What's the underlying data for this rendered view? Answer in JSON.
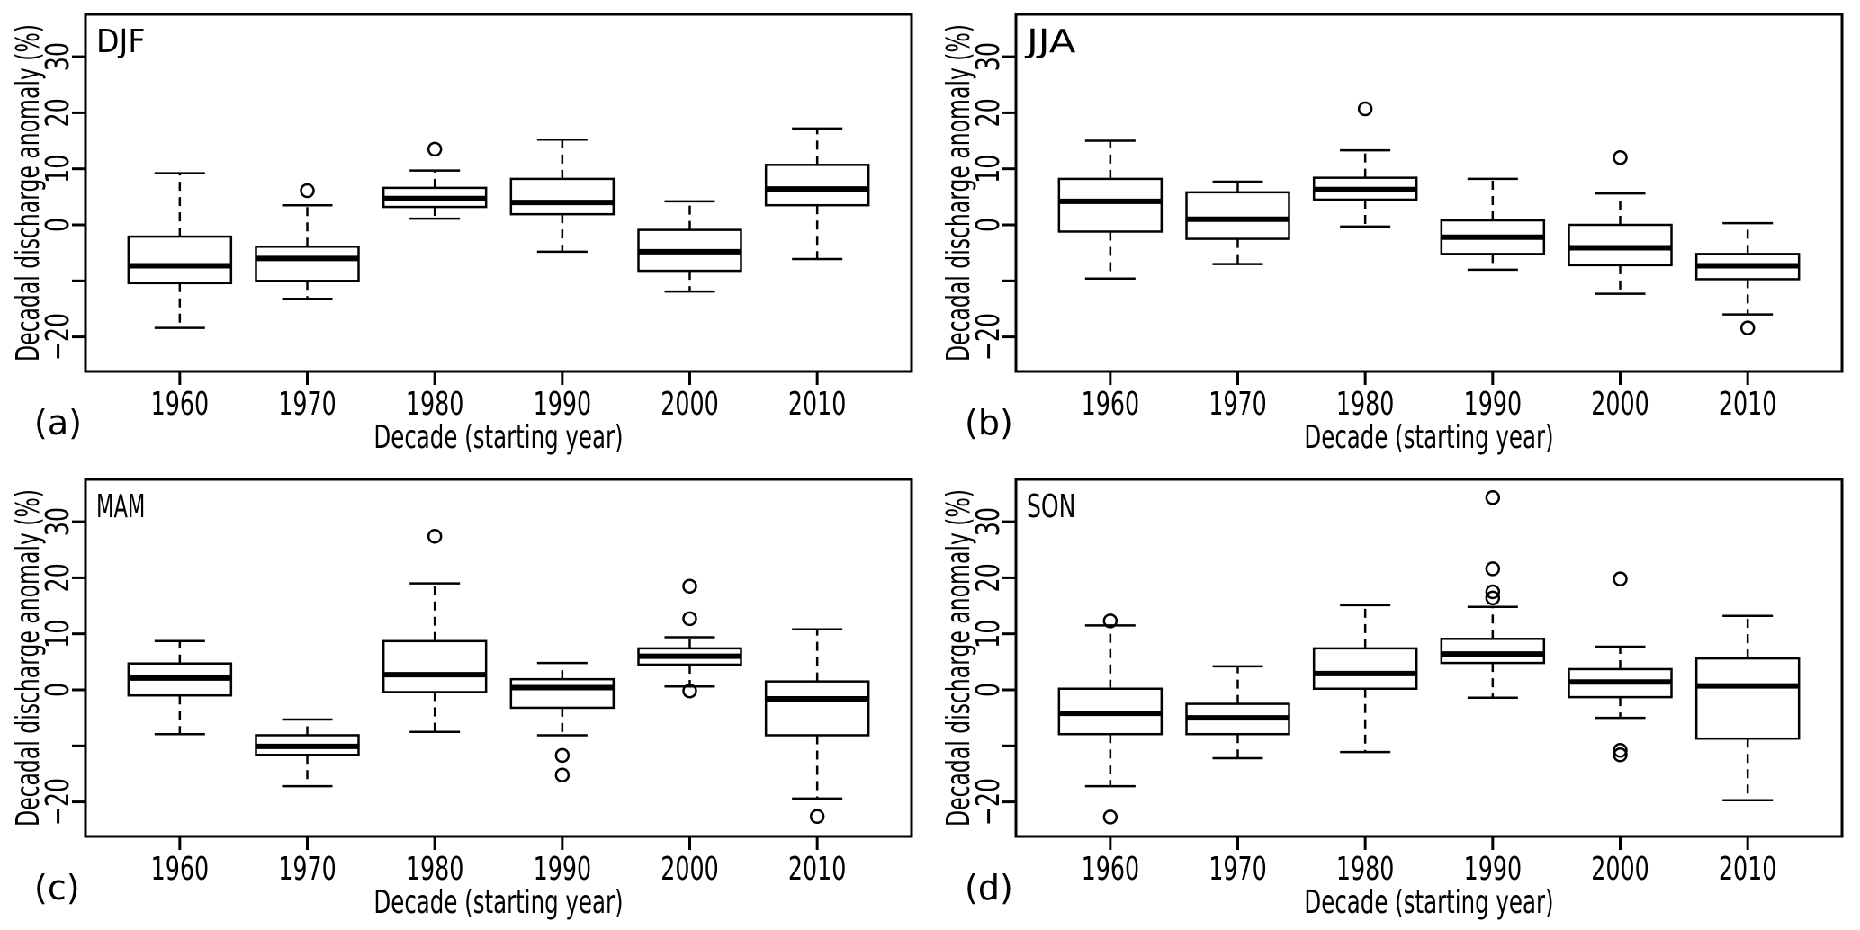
{
  "figure": {
    "background": "#ffffff",
    "ink_color": "#000000",
    "xlabel": "Decade (starting year)",
    "ylabel": "Decadal discharge anomaly (%)",
    "x_categories": [
      "1960",
      "1970",
      "1980",
      "1990",
      "2000",
      "2010"
    ],
    "y_ticks": [
      {
        "value": 30,
        "label": "30"
      },
      {
        "value": 20,
        "label": "20"
      },
      {
        "value": 10,
        "label": "10"
      },
      {
        "value": 0,
        "label": "0"
      },
      {
        "value": -10,
        "label": ""
      },
      {
        "value": -20,
        "label": "−20"
      }
    ],
    "ylim": [
      -26,
      38
    ],
    "grid": false,
    "legend": "none"
  },
  "chart_data": [
    {
      "type": "boxplot",
      "panel_label": "(a)",
      "title": "DJF",
      "xlabel": "Decade (starting year)",
      "ylabel": "Decadal discharge anomaly (%)",
      "categories": [
        "1960",
        "1970",
        "1980",
        "1990",
        "2000",
        "2010"
      ],
      "boxes": [
        {
          "category": "1960",
          "whisker_low": -18.4,
          "q1": -10.4,
          "median": -7.3,
          "q3": -2.1,
          "whisker_high": 9.2,
          "outliers": []
        },
        {
          "category": "1970",
          "whisker_low": -13.2,
          "q1": -10.0,
          "median": -6.0,
          "q3": -3.9,
          "whisker_high": 3.5,
          "outliers": [
            6.1
          ]
        },
        {
          "category": "1980",
          "whisker_low": 1.1,
          "q1": 3.2,
          "median": 4.7,
          "q3": 6.6,
          "whisker_high": 9.7,
          "outliers": [
            13.5
          ]
        },
        {
          "category": "1990",
          "whisker_low": -4.8,
          "q1": 1.9,
          "median": 4.0,
          "q3": 8.2,
          "whisker_high": 15.2,
          "outliers": []
        },
        {
          "category": "2000",
          "whisker_low": -11.9,
          "q1": -8.2,
          "median": -4.8,
          "q3": -0.9,
          "whisker_high": 4.2,
          "outliers": []
        },
        {
          "category": "2010",
          "whisker_low": -6.1,
          "q1": 3.5,
          "median": 6.4,
          "q3": 10.7,
          "whisker_high": 17.2,
          "outliers": []
        }
      ]
    },
    {
      "type": "boxplot",
      "panel_label": "(b)",
      "title": "JJA",
      "xlabel": "Decade (starting year)",
      "ylabel": "Decadal discharge anomaly (%)",
      "categories": [
        "1960",
        "1970",
        "1980",
        "1990",
        "2000",
        "2010"
      ],
      "boxes": [
        {
          "category": "1960",
          "whisker_low": -9.6,
          "q1": -1.2,
          "median": 4.2,
          "q3": 8.2,
          "whisker_high": 15.0,
          "outliers": []
        },
        {
          "category": "1970",
          "whisker_low": -7.0,
          "q1": -2.5,
          "median": 1.0,
          "q3": 5.8,
          "whisker_high": 7.7,
          "outliers": []
        },
        {
          "category": "1980",
          "whisker_low": -0.3,
          "q1": 4.5,
          "median": 6.3,
          "q3": 8.4,
          "whisker_high": 13.3,
          "outliers": [
            20.7
          ]
        },
        {
          "category": "1990",
          "whisker_low": -8.0,
          "q1": -5.2,
          "median": -2.2,
          "q3": 0.8,
          "whisker_high": 8.2,
          "outliers": []
        },
        {
          "category": "2000",
          "whisker_low": -12.3,
          "q1": -7.2,
          "median": -4.1,
          "q3": 0.0,
          "whisker_high": 5.6,
          "outliers": [
            12.0
          ]
        },
        {
          "category": "2010",
          "whisker_low": -16.0,
          "q1": -9.7,
          "median": -7.3,
          "q3": -5.2,
          "whisker_high": 0.3,
          "outliers": [
            -18.4
          ]
        }
      ]
    },
    {
      "type": "boxplot",
      "panel_label": "(c)",
      "title": "MAM",
      "xlabel": "Decade (starting year)",
      "ylabel": "Decadal discharge anomaly (%)",
      "categories": [
        "1960",
        "1970",
        "1980",
        "1990",
        "2000",
        "2010"
      ],
      "boxes": [
        {
          "category": "1960",
          "whisker_low": -7.9,
          "q1": -1.0,
          "median": 2.1,
          "q3": 4.7,
          "whisker_high": 8.7,
          "outliers": []
        },
        {
          "category": "1970",
          "whisker_low": -17.2,
          "q1": -11.6,
          "median": -10.1,
          "q3": -8.1,
          "whisker_high": -5.3,
          "outliers": []
        },
        {
          "category": "1980",
          "whisker_low": -7.5,
          "q1": -0.4,
          "median": 2.7,
          "q3": 8.7,
          "whisker_high": 19.0,
          "outliers": [
            27.4
          ]
        },
        {
          "category": "1990",
          "whisker_low": -8.1,
          "q1": -3.2,
          "median": 0.4,
          "q3": 1.9,
          "whisker_high": 4.8,
          "outliers": [
            -11.7,
            -15.2
          ]
        },
        {
          "category": "2000",
          "whisker_low": 0.6,
          "q1": 4.5,
          "median": 6.0,
          "q3": 7.4,
          "whisker_high": 9.4,
          "outliers": [
            18.5,
            12.7,
            -0.2
          ]
        },
        {
          "category": "2010",
          "whisker_low": -19.4,
          "q1": -8.1,
          "median": -1.6,
          "q3": 1.5,
          "whisker_high": 10.8,
          "outliers": [
            -22.6
          ]
        }
      ]
    },
    {
      "type": "boxplot",
      "panel_label": "(d)",
      "title": "SON",
      "xlabel": "Decade (starting year)",
      "ylabel": "Decadal discharge anomaly (%)",
      "categories": [
        "1960",
        "1970",
        "1980",
        "1990",
        "2000",
        "2010"
      ],
      "boxes": [
        {
          "category": "1960",
          "whisker_low": -17.2,
          "q1": -7.9,
          "median": -4.2,
          "q3": 0.2,
          "whisker_high": 11.5,
          "outliers": [
            12.3,
            -22.7
          ]
        },
        {
          "category": "1970",
          "whisker_low": -12.2,
          "q1": -7.9,
          "median": -5.0,
          "q3": -2.5,
          "whisker_high": 4.2,
          "outliers": []
        },
        {
          "category": "1980",
          "whisker_low": -11.1,
          "q1": 0.2,
          "median": 2.9,
          "q3": 7.4,
          "whisker_high": 15.1,
          "outliers": []
        },
        {
          "category": "1990",
          "whisker_low": -1.4,
          "q1": 4.8,
          "median": 6.4,
          "q3": 9.1,
          "whisker_high": 14.8,
          "outliers": [
            34.3,
            21.6,
            17.5,
            16.4
          ]
        },
        {
          "category": "2000",
          "whisker_low": -5.0,
          "q1": -1.3,
          "median": 1.4,
          "q3": 3.7,
          "whisker_high": 7.7,
          "outliers": [
            19.8,
            -10.8,
            -11.6
          ]
        },
        {
          "category": "2010",
          "whisker_low": -19.7,
          "q1": -8.7,
          "median": 0.7,
          "q3": 5.6,
          "whisker_high": 13.2,
          "outliers": []
        }
      ]
    }
  ]
}
